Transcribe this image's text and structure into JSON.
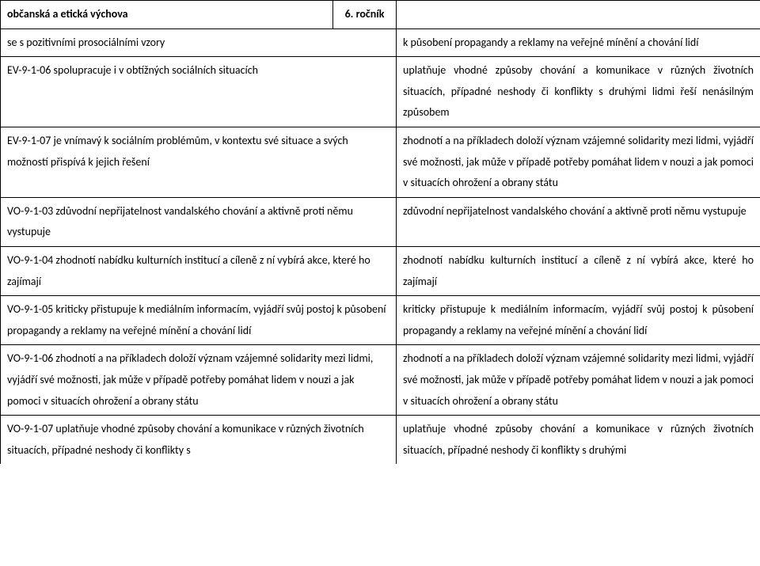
{
  "header": {
    "subject": "občanská a etická výchova",
    "grade": "6. ročník"
  },
  "rows": [
    {
      "left": "se s pozitivními prosociálními vzory",
      "right": "k působení propagandy a reklamy na veřejné mínění a chování lidí"
    },
    {
      "left": "EV-9-1-06 spolupracuje i v obtížných sociálních situacích",
      "right": "uplatňuje vhodné způsoby chování a komunikace v různých životních situacích, případné neshody či konflikty s druhými lidmi řeší nenásilným způsobem"
    },
    {
      "left": "EV-9-1-07 je vnímavý k sociálním problémům, v kontextu své situace a svých možností přispívá k jejich řešení",
      "right": "zhodnotí a na příkladech doloží význam vzájemné solidarity mezi lidmi, vyjádří své možnosti, jak může v případě potřeby pomáhat lidem v nouzi a jak pomoci v situacích ohrožení a obrany státu"
    },
    {
      "left": "VO-9-1-03 zdůvodní nepřijatelnost vandalského chování a aktivně proti němu vystupuje",
      "right": "zdůvodní nepřijatelnost vandalského chování a aktivně proti němu vystupuje"
    },
    {
      "left": "VO-9-1-04 zhodnotí nabídku kulturních institucí a cíleně z ní vybírá akce, které ho zajímají",
      "right": "zhodnotí nabídku kulturních institucí a cíleně z ní vybírá akce, které ho zajímají"
    },
    {
      "left": "VO-9-1-05 kriticky přistupuje k mediálním informacím, vyjádří svůj postoj k působení propagandy a reklamy na veřejné mínění a chování lidí",
      "right": "kriticky přistupuje k mediálním informacím, vyjádří svůj postoj k působení propagandy a reklamy na veřejné mínění a chování lidí"
    },
    {
      "left": "VO-9-1-06 zhodnotí a na příkladech doloží význam vzájemné solidarity mezi lidmi, vyjádří své možnosti, jak může v případě potřeby pomáhat lidem v nouzi a jak pomoci v situacích ohrožení a obrany státu",
      "right": "zhodnotí a na příkladech doloží význam vzájemné solidarity mezi lidmi, vyjádří své možnosti, jak může v případě potřeby pomáhat lidem v nouzi a jak pomoci v situacích ohrožení a obrany státu"
    },
    {
      "left": "VO-9-1-07 uplatňuje vhodné způsoby chování a komunikace v různých životních situacích, případné neshody či konflikty s",
      "right": "uplatňuje vhodné způsoby chování a komunikace v různých životních situacích, případné neshody či konflikty s druhými"
    }
  ]
}
